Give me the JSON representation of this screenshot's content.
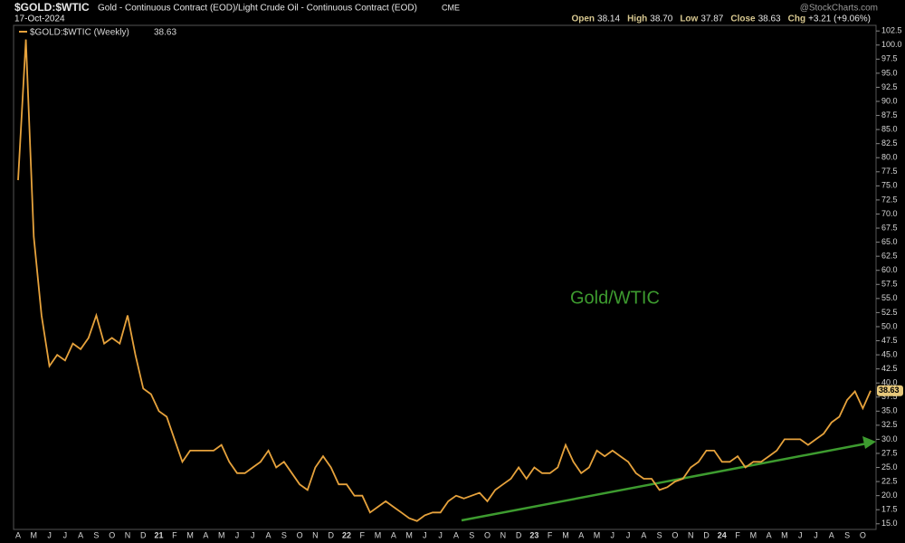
{
  "header": {
    "symbol": "$GOLD:$WTIC",
    "description": "Gold - Continuous Contract (EOD)/Light Crude Oil - Continuous Contract (EOD)",
    "exchange": "CME",
    "date": "17-Oct-2024",
    "source": "@StockCharts.com",
    "quote": [
      {
        "label": "Open",
        "value": "38.14"
      },
      {
        "label": "High",
        "value": "38.70"
      },
      {
        "label": "Low",
        "value": "37.87"
      },
      {
        "label": "Close",
        "value": "38.63"
      },
      {
        "label": "Chg",
        "value": "+3.21 (+9.06%)"
      }
    ]
  },
  "chart_data": {
    "type": "line",
    "annotation": "Gold/WTIC",
    "categories": [
      "A",
      null,
      "M",
      null,
      "J",
      null,
      "J",
      null,
      "A",
      null,
      "S",
      null,
      "O",
      null,
      "N",
      null,
      "D",
      null,
      "21",
      null,
      "F",
      null,
      "M",
      null,
      "A",
      null,
      "M",
      null,
      "J",
      null,
      "J",
      null,
      "A",
      null,
      "S",
      null,
      "O",
      null,
      "N",
      null,
      "D",
      null,
      "22",
      null,
      "F",
      null,
      "M",
      null,
      "A",
      null,
      "M",
      null,
      "J",
      null,
      "J",
      null,
      "A",
      null,
      "S",
      null,
      "O",
      null,
      "N",
      null,
      "D",
      null,
      "23",
      null,
      "F",
      null,
      "M",
      null,
      "A",
      null,
      "M",
      null,
      "J",
      null,
      "J",
      null,
      "A",
      null,
      "S",
      null,
      "O",
      null,
      "N",
      null,
      "D",
      null,
      "24",
      null,
      "F",
      null,
      "M",
      null,
      "A",
      null,
      "M",
      null,
      "J",
      null,
      "J",
      null,
      "A",
      null,
      "S",
      null,
      "O",
      null
    ],
    "series": [
      {
        "name": "$GOLD:$WTIC (Weekly)",
        "color": "#e6a23c",
        "values": [
          76,
          101,
          66,
          52,
          43,
          45,
          44,
          47,
          46,
          48,
          52,
          47,
          48,
          47,
          52,
          45,
          39,
          38,
          35,
          34,
          30,
          26,
          28,
          28,
          28,
          28,
          29,
          26,
          24,
          24,
          25,
          26,
          28,
          25,
          26,
          24,
          22,
          21,
          25,
          27,
          25,
          22,
          22,
          20,
          20,
          17,
          18,
          19,
          18,
          17,
          16,
          15.5,
          16.5,
          17,
          17,
          19,
          20,
          19.5,
          20,
          20.5,
          19,
          21,
          22,
          23,
          25,
          23,
          25,
          24,
          24,
          25,
          29,
          26,
          24,
          25,
          28,
          27,
          28,
          27,
          26,
          24,
          23,
          23,
          21,
          21.5,
          22.5,
          23,
          25,
          26,
          28,
          28,
          26,
          26,
          27,
          25,
          26,
          26,
          27,
          28,
          30,
          30,
          30,
          29,
          30,
          31,
          33,
          34,
          37,
          38.5,
          35.5,
          38.63
        ]
      }
    ],
    "ylim": [
      14,
      103.5
    ],
    "yticks": [
      {
        "value": 15,
        "label": "15.0"
      },
      {
        "value": 17.5,
        "label": "17.5"
      },
      {
        "value": 20,
        "label": "20.0"
      },
      {
        "value": 22.5,
        "label": "22.5"
      },
      {
        "value": 25,
        "label": "25.0"
      },
      {
        "value": 27.5,
        "label": "27.5"
      },
      {
        "value": 30,
        "label": "30.0"
      },
      {
        "value": 32.5,
        "label": "32.5"
      },
      {
        "value": 35,
        "label": "35.0"
      },
      {
        "value": 37.5,
        "label": "37.5"
      },
      {
        "value": 40,
        "label": "40.0"
      },
      {
        "value": 42.5,
        "label": "42.5"
      },
      {
        "value": 45,
        "label": "45.0"
      },
      {
        "value": 47.5,
        "label": "47.5"
      },
      {
        "value": 50,
        "label": "50.0"
      },
      {
        "value": 52.5,
        "label": "52.5"
      },
      {
        "value": 55,
        "label": "55.0"
      },
      {
        "value": 57.5,
        "label": "57.5"
      },
      {
        "value": 60,
        "label": "60.0"
      },
      {
        "value": 62.5,
        "label": "62.5"
      },
      {
        "value": 65,
        "label": "65.0"
      },
      {
        "value": 67.5,
        "label": "67.5"
      },
      {
        "value": 70,
        "label": "70.0"
      },
      {
        "value": 72.5,
        "label": "72.5"
      },
      {
        "value": 75,
        "label": "75.0"
      },
      {
        "value": 77.5,
        "label": "77.5"
      },
      {
        "value": 80,
        "label": "80.0"
      },
      {
        "value": 82.5,
        "label": "82.5"
      },
      {
        "value": 85,
        "label": "85.0"
      },
      {
        "value": 87.5,
        "label": "87.5"
      },
      {
        "value": 90,
        "label": "90.0"
      },
      {
        "value": 92.5,
        "label": "92.5"
      },
      {
        "value": 95,
        "label": "95.0"
      },
      {
        "value": 97.5,
        "label": "97.5"
      },
      {
        "value": 100,
        "label": "100.0"
      },
      {
        "value": 102.5,
        "label": "102.5"
      }
    ],
    "grid": false
  }
}
